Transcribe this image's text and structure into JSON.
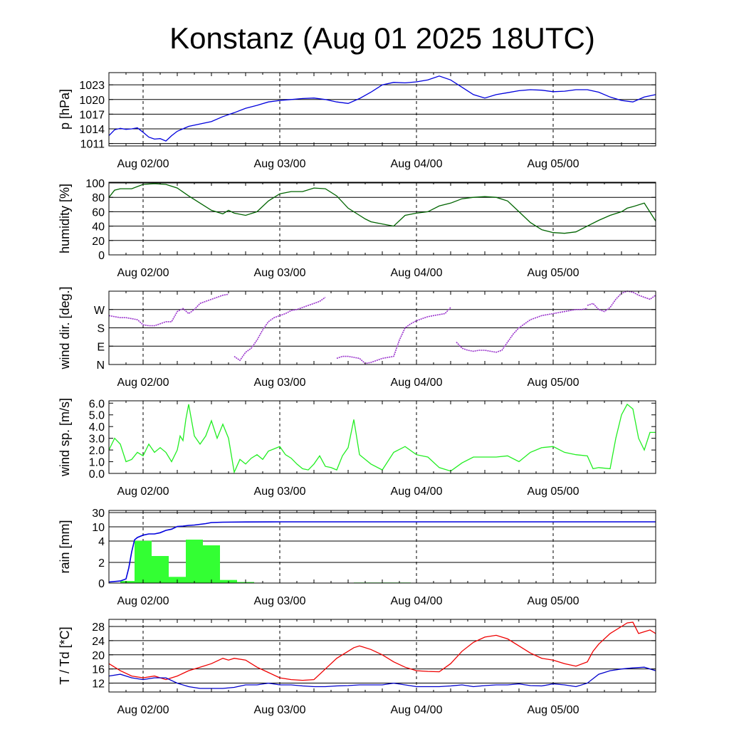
{
  "page": {
    "title": "Konstanz (Aug 01 2025 18UTC)"
  },
  "colors": {
    "pressure": "#0000dd",
    "humidity": "#006400",
    "winddir": "#9932cc",
    "windspeed": "#22ee22",
    "rain_bar": "#33ff33",
    "rain_line": "#0000dd",
    "temp": "#ee0000",
    "dew": "#0000cc"
  },
  "x_ticks": [
    {
      "label": "Aug 02/00",
      "t": 6
    },
    {
      "label": "Aug 03/00",
      "t": 30
    },
    {
      "label": "Aug 04/00",
      "t": 54
    },
    {
      "label": "Aug 05/00",
      "t": 78
    }
  ],
  "x_range": [
    0,
    96
  ],
  "chart_data": [
    {
      "type": "line",
      "id": "pressure",
      "ylabel": "p [hPa]",
      "ylim": [
        1010.5,
        1025.5
      ],
      "yticks": [
        1011,
        1014,
        1017,
        1020,
        1023
      ],
      "ytick_labels": [
        "1011",
        "1014",
        "1017",
        "1020",
        "1023"
      ],
      "grid": true,
      "series": [
        {
          "color_key": "pressure",
          "x": [
            0,
            1,
            2,
            3,
            4,
            5,
            6,
            7,
            8,
            9,
            10,
            11,
            12,
            14,
            16,
            18,
            20,
            22,
            24,
            26,
            28,
            30,
            32,
            34,
            36,
            38,
            40,
            42,
            44,
            46,
            48,
            50,
            52,
            54,
            56,
            58,
            60,
            62,
            64,
            66,
            68,
            70,
            72,
            74,
            76,
            78,
            80,
            82,
            84,
            86,
            88,
            90,
            92,
            94,
            96
          ],
          "y": [
            1012.6,
            1013.8,
            1014.1,
            1013.9,
            1014.0,
            1014.2,
            1013.3,
            1012.3,
            1011.9,
            1012.0,
            1011.5,
            1012.6,
            1013.5,
            1014.5,
            1015.0,
            1015.5,
            1016.5,
            1017.3,
            1018.2,
            1018.8,
            1019.5,
            1019.8,
            1020.0,
            1020.2,
            1020.3,
            1020.0,
            1019.5,
            1019.2,
            1020.2,
            1021.5,
            1023.0,
            1023.5,
            1023.4,
            1023.6,
            1024.0,
            1024.8,
            1024.0,
            1022.5,
            1021.0,
            1020.3,
            1021.0,
            1021.4,
            1021.8,
            1022.0,
            1021.9,
            1021.6,
            1021.7,
            1022.0,
            1022.0,
            1021.5,
            1020.5,
            1019.8,
            1019.5,
            1020.5,
            1021.0
          ]
        }
      ]
    },
    {
      "type": "line",
      "id": "humidity",
      "ylabel": "humidity [%]",
      "ylim": [
        0,
        101
      ],
      "yticks": [
        0,
        20,
        40,
        60,
        80,
        100
      ],
      "ytick_labels": [
        "0",
        "20",
        "40",
        "60",
        "80",
        "100"
      ],
      "grid": true,
      "series": [
        {
          "color_key": "humidity",
          "x": [
            0,
            1,
            2,
            4,
            6,
            8,
            10,
            12,
            14,
            16,
            18,
            20,
            21,
            22,
            24,
            26,
            28,
            30,
            32,
            34,
            36,
            38,
            40,
            42,
            44,
            45,
            46,
            48,
            50,
            52,
            54,
            56,
            58,
            60,
            62,
            64,
            66,
            68,
            70,
            72,
            74,
            76,
            78,
            80,
            82,
            84,
            86,
            88,
            90,
            91,
            92,
            94,
            96
          ],
          "y": [
            80,
            90,
            92,
            92,
            98,
            99,
            98,
            93,
            82,
            72,
            62,
            57,
            62,
            58,
            55,
            60,
            75,
            85,
            88,
            88,
            93,
            92,
            82,
            65,
            55,
            50,
            46,
            43,
            40,
            55,
            58,
            60,
            68,
            72,
            78,
            80,
            81,
            80,
            75,
            60,
            45,
            35,
            31,
            30,
            32,
            40,
            48,
            55,
            60,
            65,
            67,
            72,
            47
          ],
          "breaks_note": ""
        }
      ]
    },
    {
      "type": "scatter",
      "id": "winddir",
      "ylabel": "wind dir. [deg.]",
      "ylim": [
        0,
        360
      ],
      "yticks": [
        0,
        90,
        180,
        270
      ],
      "ytick_labels": [
        "N",
        "E",
        "S",
        "W"
      ],
      "grid": true,
      "segments": [
        {
          "x": [
            0,
            1,
            2,
            3,
            4,
            5,
            6,
            7,
            8,
            9,
            10,
            11,
            12,
            13,
            14,
            15,
            16,
            17,
            18,
            19,
            20,
            21
          ],
          "y": [
            240,
            235,
            230,
            230,
            225,
            220,
            195,
            190,
            190,
            200,
            210,
            210,
            260,
            275,
            250,
            270,
            300,
            310,
            320,
            330,
            340,
            345
          ]
        },
        {
          "x": [
            22,
            23,
            24,
            25,
            26,
            27,
            28,
            29,
            30,
            31,
            32,
            33,
            34,
            35,
            36,
            37,
            38
          ],
          "y": [
            40,
            20,
            60,
            80,
            120,
            170,
            210,
            230,
            240,
            250,
            265,
            270,
            280,
            290,
            300,
            310,
            330
          ]
        },
        {
          "x": [
            40,
            41,
            42,
            43,
            44,
            45,
            46,
            47,
            48,
            49,
            50,
            51,
            52,
            53,
            54,
            55,
            56,
            57,
            58,
            59,
            60
          ],
          "y": [
            30,
            40,
            40,
            35,
            30,
            5,
            10,
            20,
            30,
            35,
            40,
            120,
            180,
            200,
            215,
            225,
            235,
            240,
            245,
            250,
            280
          ]
        },
        {
          "x": [
            61,
            62,
            63,
            64,
            65,
            66,
            67,
            68,
            69,
            70,
            71,
            72,
            73,
            74,
            75,
            76,
            77,
            78,
            79,
            80,
            81,
            82,
            83,
            84
          ],
          "y": [
            110,
            80,
            70,
            65,
            70,
            70,
            65,
            60,
            70,
            110,
            150,
            180,
            200,
            220,
            230,
            240,
            245,
            250,
            255,
            260,
            265,
            270,
            270,
            275
          ]
        },
        {
          "x": [
            84,
            85,
            86,
            87,
            88,
            89,
            90,
            91,
            92,
            93,
            94,
            95,
            96
          ],
          "y": [
            290,
            300,
            270,
            260,
            280,
            320,
            350,
            360,
            355,
            340,
            330,
            320,
            340
          ]
        }
      ],
      "series": [
        {
          "color_key": "winddir"
        }
      ]
    },
    {
      "type": "line",
      "id": "windspeed",
      "ylabel": "wind sp. [m/s]",
      "ylim": [
        0,
        6.2
      ],
      "yticks": [
        0,
        1,
        2,
        3,
        4,
        5,
        6
      ],
      "ytick_labels": [
        "0.0",
        "1.0",
        "2.0",
        "3.0",
        "4.0",
        "5.0",
        "6.0"
      ],
      "grid": false,
      "series": [
        {
          "color_key": "windspeed",
          "x": [
            0,
            1,
            2,
            3,
            4,
            5,
            6,
            7,
            8,
            9,
            10,
            11,
            12,
            12.5,
            13,
            13.5,
            14,
            15,
            16,
            17,
            18,
            19,
            20,
            21,
            22,
            23,
            24,
            25,
            26,
            27,
            28,
            29,
            30,
            31,
            32,
            33,
            34,
            35,
            36,
            37,
            38,
            39,
            40,
            41,
            42,
            43,
            44,
            46,
            48,
            50,
            52,
            54,
            56,
            58,
            60,
            62,
            64,
            66,
            68,
            70,
            72,
            74,
            76,
            78,
            80,
            82,
            84,
            85,
            86,
            88,
            89,
            90,
            91,
            92,
            93,
            94,
            95,
            96
          ],
          "y": [
            2.0,
            3.0,
            2.5,
            1.0,
            1.2,
            1.8,
            1.5,
            2.5,
            1.8,
            2.2,
            1.8,
            1.0,
            2.0,
            3.2,
            2.8,
            4.6,
            5.9,
            3.2,
            2.5,
            3.2,
            4.5,
            3.0,
            4.2,
            3.0,
            0.1,
            1.2,
            0.8,
            1.3,
            1.6,
            1.2,
            1.9,
            2.1,
            2.3,
            1.6,
            1.3,
            0.8,
            0.4,
            0.3,
            0.8,
            1.5,
            0.6,
            0.5,
            0.3,
            1.5,
            2.2,
            4.6,
            1.6,
            0.8,
            0.3,
            1.8,
            2.3,
            1.6,
            1.4,
            0.5,
            0.2,
            0.9,
            1.4,
            1.4,
            1.4,
            1.5,
            1.0,
            1.8,
            2.2,
            2.3,
            1.8,
            1.6,
            1.5,
            0.4,
            0.5,
            0.4,
            3.0,
            5.0,
            5.9,
            5.5,
            3.0,
            2.0,
            3.5,
            3.5
          ]
        }
      ]
    },
    {
      "type": "bar",
      "id": "rain",
      "ylabel": "rain [mm]",
      "ytick_values": [
        0,
        2,
        4,
        10,
        30
      ],
      "ytick_labels": [
        "0",
        "2",
        "4",
        "10",
        "30"
      ],
      "grid": true,
      "bars": [
        {
          "x0": 2,
          "x1": 4.5,
          "mm": 0.2
        },
        {
          "x0": 4.5,
          "x1": 7.5,
          "mm": 4.1
        },
        {
          "x0": 7.5,
          "x1": 10.5,
          "mm": 2.6
        },
        {
          "x0": 10.5,
          "x1": 13.5,
          "mm": 0.6
        },
        {
          "x0": 13.5,
          "x1": 16.5,
          "mm": 4.6
        },
        {
          "x0": 16.5,
          "x1": 19.5,
          "mm": 3.6
        },
        {
          "x0": 19.5,
          "x1": 22.5,
          "mm": 0.3
        },
        {
          "x0": 22.5,
          "x1": 25.5,
          "mm": 0.1
        },
        {
          "x0": 43,
          "x1": 53,
          "mm": 0.05
        }
      ],
      "accum": {
        "x": [
          0,
          2,
          3,
          3.5,
          4,
          4.5,
          5,
          6,
          7,
          8,
          9,
          10,
          11,
          12,
          13,
          14,
          15,
          16,
          17,
          18,
          20,
          24,
          30,
          40,
          50,
          60,
          70,
          80,
          90,
          96
        ],
        "mm": [
          0.1,
          0.2,
          0.4,
          1.5,
          3.0,
          4.5,
          5.5,
          6.5,
          7.0,
          7.0,
          7.5,
          8.5,
          9.0,
          10.5,
          11.0,
          12.0,
          12.5,
          13.5,
          14.5,
          16.0,
          16.5,
          16.8,
          17.0,
          17.0,
          17.0,
          17.0,
          17.0,
          17.0,
          17.0,
          17.0
        ]
      },
      "series": [
        {
          "color_key": "rain_bar"
        },
        {
          "color_key": "rain_line"
        }
      ]
    },
    {
      "type": "line",
      "id": "temp",
      "ylabel": "T / Td [*C]",
      "ylim": [
        9.5,
        30
      ],
      "yticks": [
        12,
        16,
        20,
        24,
        28
      ],
      "ytick_labels": [
        "12",
        "16",
        "20",
        "24",
        "28"
      ],
      "grid": true,
      "series": [
        {
          "color_key": "temp",
          "x": [
            0,
            2,
            4,
            6,
            8,
            10,
            12,
            14,
            16,
            18,
            20,
            21,
            22,
            24,
            26,
            28,
            30,
            32,
            34,
            36,
            38,
            40,
            42,
            43,
            44,
            46,
            48,
            50,
            52,
            54,
            56,
            58,
            60,
            62,
            64,
            66,
            68,
            70,
            72,
            74,
            76,
            78,
            80,
            82,
            84,
            85,
            86,
            88,
            90,
            91,
            92,
            93,
            94,
            95,
            96
          ],
          "y": [
            17.5,
            15.5,
            14.0,
            13.5,
            14.0,
            13.0,
            14.0,
            15.5,
            16.5,
            17.5,
            19.0,
            18.5,
            19.0,
            18.5,
            16.5,
            15.0,
            13.5,
            13.0,
            12.8,
            13.0,
            16.0,
            19.0,
            21.0,
            22.0,
            22.5,
            21.5,
            20.0,
            18.0,
            16.5,
            15.5,
            15.3,
            15.2,
            17.5,
            21.0,
            23.5,
            25.0,
            25.5,
            24.5,
            22.5,
            20.5,
            19.0,
            18.5,
            17.5,
            16.8,
            18.0,
            21.0,
            23.0,
            26.0,
            28.0,
            29.0,
            29.2,
            26.0,
            26.5,
            27.0,
            26.0
          ]
        },
        {
          "color_key": "dew",
          "x": [
            0,
            2,
            4,
            6,
            8,
            10,
            12,
            14,
            16,
            18,
            20,
            22,
            24,
            26,
            28,
            30,
            32,
            34,
            36,
            38,
            40,
            42,
            44,
            46,
            48,
            50,
            52,
            54,
            56,
            58,
            60,
            62,
            64,
            66,
            68,
            70,
            72,
            74,
            76,
            78,
            80,
            82,
            84,
            86,
            88,
            90,
            92,
            94,
            96
          ],
          "y": [
            14.0,
            14.5,
            13.5,
            13.0,
            13.5,
            13.5,
            12.0,
            11.0,
            10.5,
            10.5,
            10.5,
            10.8,
            11.5,
            11.5,
            12.0,
            11.5,
            11.5,
            11.2,
            11.0,
            11.0,
            11.2,
            11.3,
            11.5,
            11.5,
            11.5,
            12.0,
            11.5,
            11.0,
            11.0,
            11.0,
            11.2,
            11.5,
            11.0,
            11.3,
            11.5,
            11.5,
            11.8,
            11.3,
            11.2,
            11.8,
            11.5,
            11.0,
            12.0,
            14.5,
            15.5,
            16.0,
            16.3,
            16.5,
            15.5
          ]
        }
      ]
    }
  ]
}
